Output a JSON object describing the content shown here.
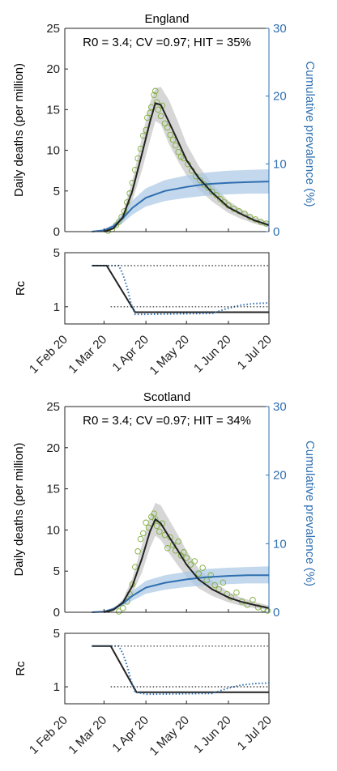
{
  "panels": [
    {
      "title": "England",
      "annotation": "R0 = 3.4; CV =0.97; HIT = 35%"
    },
    {
      "title": "Scotland",
      "annotation": "R0 = 3.4; CV =0.97; HIT = 34%"
    }
  ],
  "axes": {
    "left_ylabel": "Daily deaths (per million)",
    "right_ylabel": "Cumulative prevalence (%)",
    "rc_ylabel": "Rc",
    "left_ticks": [
      "0",
      "5",
      "10",
      "15",
      "20",
      "25"
    ],
    "right_ticks": [
      "0",
      "10",
      "20",
      "30"
    ],
    "rc_ticks": [
      "1",
      "5"
    ],
    "x_ticks": [
      "1 Feb 20",
      "1 Mar 20",
      "1 Apr 20",
      "1 May 20",
      "1 Jun 20",
      "1 Jul 20"
    ]
  },
  "colors": {
    "deaths_line": "#222222",
    "deaths_band": "#cfcfcf",
    "observed_markers": "#7fae3a",
    "prevalence_line": "#2f6fb0",
    "prevalence_band": "#a9c7e4",
    "right_axis": "#2f6fb0",
    "rc_threshold": "#222222"
  },
  "chart_data": [
    {
      "type": "line",
      "title": "England",
      "xlabel": "",
      "ylabel": "Daily deaths (per million)",
      "y2label": "Cumulative prevalence (%)",
      "xlim": [
        "2020-02-01",
        "2020-07-01"
      ],
      "ylim": [
        0,
        25
      ],
      "y2lim": [
        0,
        30
      ],
      "annotation": "R0 = 3.4; CV =0.97; HIT = 35%",
      "series": [
        {
          "axis": "left",
          "x": [
            "2020-03-01",
            "2020-03-08",
            "2020-03-15",
            "2020-03-22",
            "2020-03-29",
            "2020-04-04",
            "2020-04-08",
            "2020-04-12",
            "2020-04-18",
            "2020-04-25",
            "2020-05-01",
            "2020-05-10",
            "2020-05-20",
            "2020-06-01",
            "2020-06-10",
            "2020-06-20",
            "2020-07-01"
          ],
          "values": [
            0.0,
            0.4,
            1.8,
            5.0,
            9.5,
            13.5,
            15.8,
            15.6,
            13.5,
            11.0,
            8.8,
            6.6,
            4.8,
            3.0,
            2.2,
            1.4,
            0.8
          ],
          "band_lower": [
            0.0,
            0.3,
            1.3,
            3.8,
            7.5,
            11.2,
            13.6,
            13.2,
            10.8,
            8.6,
            6.9,
            5.2,
            3.7,
            2.3,
            1.6,
            1.0,
            0.5
          ],
          "band_upper": [
            0.0,
            0.5,
            2.4,
            6.3,
            11.5,
            15.8,
            17.6,
            17.8,
            16.2,
            13.4,
            10.8,
            8.1,
            5.9,
            3.8,
            2.8,
            1.8,
            1.1
          ]
        },
        {
          "axis": "right",
          "x": [
            "2020-02-21",
            "2020-03-01",
            "2020-03-08",
            "2020-03-15",
            "2020-03-22",
            "2020-04-01",
            "2020-04-15",
            "2020-05-01",
            "2020-05-15",
            "2020-06-01",
            "2020-06-15",
            "2020-07-01"
          ],
          "values": [
            0.0,
            0.2,
            0.8,
            2.0,
            3.5,
            5.0,
            6.0,
            6.6,
            7.0,
            7.2,
            7.3,
            7.4
          ],
          "band_lower": [
            0.0,
            0.1,
            0.5,
            1.3,
            2.5,
            3.7,
            4.5,
            5.0,
            5.3,
            5.5,
            5.6,
            5.6
          ],
          "band_upper": [
            0.0,
            0.3,
            1.1,
            2.7,
            4.6,
            6.4,
            7.6,
            8.3,
            8.7,
            9.0,
            9.1,
            9.2
          ]
        },
        {
          "axis": "left",
          "style": "markers",
          "x": [
            "2020-03-04",
            "2020-03-07",
            "2020-03-10",
            "2020-03-12",
            "2020-03-14",
            "2020-03-16",
            "2020-03-18",
            "2020-03-20",
            "2020-03-22",
            "2020-03-24",
            "2020-03-26",
            "2020-03-28",
            "2020-03-30",
            "2020-04-01",
            "2020-04-02",
            "2020-04-04",
            "2020-04-05",
            "2020-04-07",
            "2020-04-08",
            "2020-04-09",
            "2020-04-10",
            "2020-04-12",
            "2020-04-13",
            "2020-04-15",
            "2020-04-17",
            "2020-04-19",
            "2020-04-21",
            "2020-04-23",
            "2020-04-25",
            "2020-04-27",
            "2020-04-29",
            "2020-05-02",
            "2020-05-05",
            "2020-05-08",
            "2020-05-11",
            "2020-05-14",
            "2020-05-17",
            "2020-05-20",
            "2020-05-23",
            "2020-05-26",
            "2020-05-29",
            "2020-06-01",
            "2020-06-05",
            "2020-06-09",
            "2020-06-13",
            "2020-06-17",
            "2020-06-21",
            "2020-06-25",
            "2020-06-29"
          ],
          "values": [
            0.1,
            0.3,
            0.8,
            1.2,
            1.8,
            2.5,
            3.6,
            4.7,
            6.0,
            7.6,
            9.0,
            10.2,
            11.8,
            12.5,
            14.0,
            14.6,
            15.3,
            16.8,
            17.3,
            15.9,
            15.0,
            14.2,
            15.5,
            13.3,
            12.8,
            11.9,
            11.3,
            10.6,
            9.8,
            9.2,
            9.0,
            8.3,
            7.5,
            6.8,
            6.3,
            5.8,
            5.4,
            4.9,
            4.5,
            4.0,
            3.6,
            3.2,
            2.8,
            2.5,
            2.2,
            1.8,
            1.5,
            1.2,
            1.0
          ]
        }
      ]
    },
    {
      "type": "line",
      "title": "",
      "xlabel": "",
      "ylabel": "Rc",
      "xlim": [
        "2020-02-01",
        "2020-07-01"
      ],
      "ylim": [
        0.6,
        5
      ],
      "series": [
        {
          "x": [
            "2020-02-21",
            "2020-03-03",
            "2020-03-24",
            "2020-07-01"
          ],
          "values": [
            3.4,
            3.4,
            0.85,
            0.85
          ]
        },
        {
          "style": "dotted",
          "x": [
            "2020-02-21",
            "2020-03-12",
            "2020-03-15",
            "2020-03-18",
            "2020-03-21",
            "2020-03-24",
            "2020-04-02",
            "2020-05-20",
            "2020-05-31",
            "2020-06-10",
            "2020-06-20",
            "2020-07-01"
          ],
          "values": [
            3.4,
            3.4,
            2.6,
            1.8,
            1.1,
            0.8,
            0.8,
            0.82,
            0.95,
            1.05,
            1.1,
            1.12
          ]
        },
        {
          "style": "threshold-dotted",
          "x": [
            "2020-02-21",
            "2020-07-01"
          ],
          "values": [
            3.4,
            3.4
          ]
        },
        {
          "style": "threshold-dotted",
          "x": [
            "2020-03-06",
            "2020-07-01"
          ],
          "values": [
            1.0,
            1.0
          ]
        }
      ]
    },
    {
      "type": "line",
      "title": "Scotland",
      "xlabel": "",
      "ylabel": "Daily deaths (per million)",
      "y2label": "Cumulative prevalence (%)",
      "xlim": [
        "2020-02-01",
        "2020-07-01"
      ],
      "ylim": [
        0,
        25
      ],
      "y2lim": [
        0,
        30
      ],
      "annotation": "R0 = 3.4; CV =0.97; HIT = 34%",
      "series": [
        {
          "axis": "left",
          "x": [
            "2020-03-01",
            "2020-03-08",
            "2020-03-15",
            "2020-03-22",
            "2020-03-29",
            "2020-04-04",
            "2020-04-08",
            "2020-04-12",
            "2020-04-18",
            "2020-04-25",
            "2020-05-01",
            "2020-05-10",
            "2020-05-20",
            "2020-06-01",
            "2020-06-10",
            "2020-06-20",
            "2020-07-01"
          ],
          "values": [
            0.0,
            0.3,
            1.2,
            3.2,
            6.5,
            9.8,
            11.3,
            10.8,
            9.2,
            7.4,
            5.8,
            4.0,
            2.8,
            1.8,
            1.3,
            0.9,
            0.5
          ],
          "band_lower": [
            0.0,
            0.2,
            0.8,
            2.3,
            4.8,
            7.8,
            9.3,
            8.8,
            7.2,
            5.6,
            4.3,
            2.9,
            2.0,
            1.2,
            0.8,
            0.5,
            0.3
          ],
          "band_upper": [
            0.0,
            0.4,
            1.6,
            4.1,
            8.2,
            11.7,
            13.3,
            13.0,
            11.3,
            9.3,
            7.5,
            5.3,
            3.8,
            2.5,
            1.8,
            1.3,
            0.8
          ]
        },
        {
          "axis": "right",
          "x": [
            "2020-02-21",
            "2020-03-01",
            "2020-03-08",
            "2020-03-15",
            "2020-03-22",
            "2020-04-01",
            "2020-04-15",
            "2020-05-01",
            "2020-05-15",
            "2020-06-01",
            "2020-06-15",
            "2020-07-01"
          ],
          "values": [
            0.0,
            0.1,
            0.5,
            1.3,
            2.4,
            3.6,
            4.3,
            4.8,
            5.1,
            5.3,
            5.4,
            5.4
          ],
          "band_lower": [
            0.0,
            0.05,
            0.3,
            0.9,
            1.7,
            2.7,
            3.3,
            3.7,
            3.9,
            4.1,
            4.2,
            4.2
          ],
          "band_upper": [
            0.0,
            0.2,
            0.7,
            1.7,
            3.1,
            4.6,
            5.4,
            5.9,
            6.3,
            6.5,
            6.6,
            6.7
          ]
        },
        {
          "axis": "left",
          "style": "markers",
          "x": [
            "2020-03-12",
            "2020-03-15",
            "2020-03-18",
            "2020-03-20",
            "2020-03-22",
            "2020-03-24",
            "2020-03-26",
            "2020-03-28",
            "2020-03-30",
            "2020-04-01",
            "2020-04-03",
            "2020-04-05",
            "2020-04-07",
            "2020-04-08",
            "2020-04-09",
            "2020-04-11",
            "2020-04-13",
            "2020-04-15",
            "2020-04-17",
            "2020-04-19",
            "2020-04-21",
            "2020-04-23",
            "2020-04-25",
            "2020-04-27",
            "2020-04-29",
            "2020-05-01",
            "2020-05-04",
            "2020-05-07",
            "2020-05-10",
            "2020-05-13",
            "2020-05-16",
            "2020-05-19",
            "2020-05-22",
            "2020-05-25",
            "2020-05-28",
            "2020-05-31",
            "2020-06-03",
            "2020-06-07",
            "2020-06-11",
            "2020-06-15",
            "2020-06-19",
            "2020-06-23",
            "2020-06-27",
            "2020-06-30"
          ],
          "values": [
            0.1,
            0.5,
            1.3,
            2.2,
            3.4,
            5.5,
            7.4,
            8.9,
            9.6,
            10.9,
            10.3,
            11.6,
            12.0,
            11.3,
            10.5,
            9.8,
            10.8,
            9.4,
            7.8,
            9.1,
            8.2,
            7.5,
            8.6,
            6.9,
            7.3,
            6.6,
            5.8,
            6.2,
            4.7,
            5.4,
            3.9,
            4.5,
            3.3,
            2.8,
            3.6,
            2.2,
            1.8,
            2.4,
            1.3,
            0.9,
            1.5,
            0.6,
            0.4,
            0.2
          ]
        }
      ]
    },
    {
      "type": "line",
      "title": "",
      "xlabel": "",
      "ylabel": "Rc",
      "xlim": [
        "2020-02-01",
        "2020-07-01"
      ],
      "ylim": [
        0.6,
        5
      ],
      "series": [
        {
          "x": [
            "2020-02-21",
            "2020-03-06",
            "2020-03-25",
            "2020-07-01"
          ],
          "values": [
            3.4,
            3.4,
            0.85,
            0.85
          ]
        },
        {
          "style": "dotted",
          "x": [
            "2020-02-21",
            "2020-03-12",
            "2020-03-15",
            "2020-03-18",
            "2020-03-21",
            "2020-03-24",
            "2020-04-02",
            "2020-05-20",
            "2020-05-31",
            "2020-06-10",
            "2020-06-20",
            "2020-07-01"
          ],
          "values": [
            3.4,
            3.4,
            2.7,
            1.9,
            1.2,
            0.85,
            0.8,
            0.82,
            0.95,
            1.05,
            1.1,
            1.12
          ]
        },
        {
          "style": "threshold-dotted",
          "x": [
            "2020-02-21",
            "2020-07-01"
          ],
          "values": [
            3.4,
            3.4
          ]
        },
        {
          "style": "threshold-dotted",
          "x": [
            "2020-03-06",
            "2020-07-01"
          ],
          "values": [
            1.0,
            1.0
          ]
        }
      ]
    }
  ]
}
